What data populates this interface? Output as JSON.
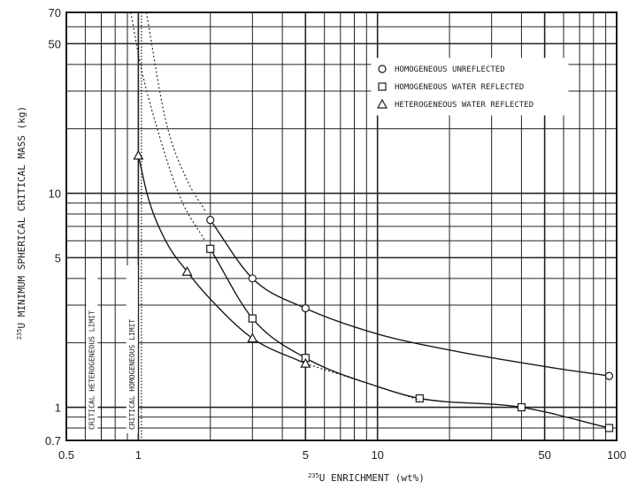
{
  "chart_data": {
    "type": "line",
    "xscale": "log",
    "yscale": "log",
    "xlim": [
      0.5,
      100
    ],
    "ylim": [
      0.7,
      70
    ],
    "x_ticks": [
      "0.5",
      "1",
      "5",
      "10",
      "50",
      "100"
    ],
    "y_ticks": [
      "0.7",
      "1",
      "5",
      "10",
      "50",
      "70"
    ],
    "x_tick_values": [
      0.5,
      1,
      5,
      10,
      50,
      100
    ],
    "y_tick_values": [
      0.7,
      1,
      5,
      10,
      50,
      70
    ],
    "xlabel_sup": "235",
    "xlabel": "U ENRICHMENT (wt%)",
    "ylabel_sup": "235",
    "ylabel": "U MINIMUM SPHERICAL CRITICAL MASS (kg)",
    "grid": true,
    "legend_position": "top-right",
    "series": [
      {
        "name": "HOMOGENEOUS UNREFLECTED",
        "marker": "circle",
        "points": [
          [
            2,
            7.5
          ],
          [
            3,
            4
          ],
          [
            5,
            2.9
          ],
          [
            93,
            1.4
          ]
        ],
        "curve": [
          [
            1.08,
            70
          ],
          [
            1.3,
            22
          ],
          [
            1.6,
            11.5
          ],
          [
            2,
            7.5
          ],
          [
            3,
            4
          ],
          [
            5,
            2.9
          ],
          [
            10,
            2.2
          ],
          [
            20,
            1.85
          ],
          [
            50,
            1.55
          ],
          [
            93,
            1.4
          ]
        ],
        "asymptote_dotted": [
          [
            1.08,
            70
          ],
          [
            1.3,
            22
          ],
          [
            1.6,
            11.5
          ],
          [
            1.9,
            8.3
          ]
        ]
      },
      {
        "name": "HOMOGENEOUS WATER REFLECTED",
        "marker": "square",
        "points": [
          [
            2,
            5.5
          ],
          [
            3,
            2.6
          ],
          [
            5,
            1.7
          ],
          [
            15,
            1.1
          ],
          [
            40,
            1.0
          ],
          [
            93,
            0.8
          ]
        ],
        "curve": [
          [
            1.02,
            70
          ],
          [
            1.2,
            20
          ],
          [
            1.5,
            9.5
          ],
          [
            2,
            5.5
          ],
          [
            3,
            2.6
          ],
          [
            5,
            1.7
          ],
          [
            10,
            1.25
          ],
          [
            15,
            1.1
          ],
          [
            40,
            1.0
          ],
          [
            93,
            0.8
          ]
        ],
        "asymptote_dotted": [
          [
            0.93,
            70
          ],
          [
            1.02,
            40
          ],
          [
            1.2,
            20
          ],
          [
            1.5,
            9.5
          ],
          [
            1.9,
            6.0
          ]
        ]
      },
      {
        "name": "HETEROGENEOUS WATER REFLECTED",
        "marker": "triangle",
        "points": [
          [
            1,
            15
          ],
          [
            1.6,
            4.3
          ],
          [
            3,
            2.1
          ],
          [
            5,
            1.6
          ]
        ],
        "curve": [
          [
            1,
            15
          ],
          [
            1.1,
            9.5
          ],
          [
            1.3,
            6.0
          ],
          [
            1.6,
            4.3
          ],
          [
            2,
            3.2
          ],
          [
            3,
            2.1
          ],
          [
            5,
            1.6
          ],
          [
            10,
            1.25
          ],
          [
            15,
            1.08
          ]
        ],
        "dotted_from_index": 6
      }
    ],
    "annotations": [
      {
        "text": "CRITICAL HETEROGENEOUS LIMIT",
        "x": 0.7
      },
      {
        "text": "CRITICAL HOMOGENEOUS LIMIT",
        "x": 1.03
      }
    ],
    "colors": {
      "line": "#1a1a1a",
      "grid": "#222222",
      "background": "#ffffff"
    }
  }
}
